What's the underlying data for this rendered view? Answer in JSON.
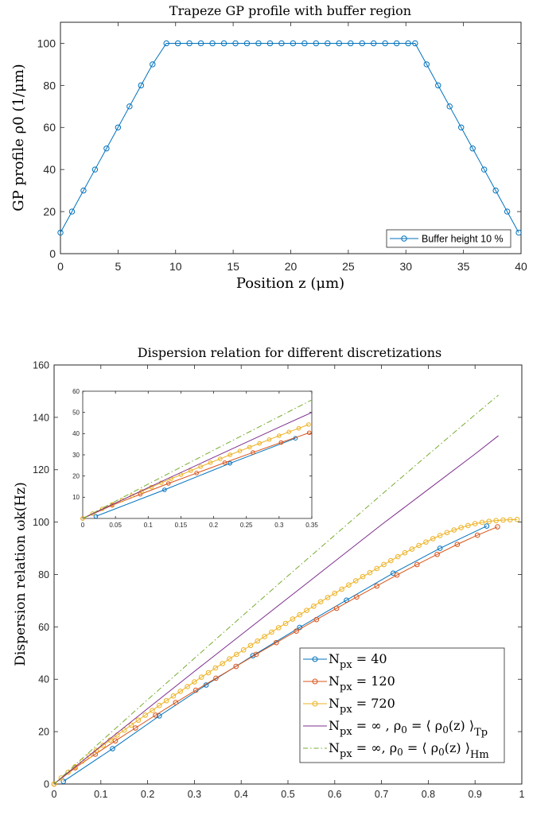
{
  "chart_data": [
    {
      "type": "line",
      "title": "Trapeze GP profile with buffer region",
      "xlabel": "Position z (μm)",
      "ylabel": "GP profile ρ0 (1/μm)",
      "xlim": [
        0,
        40
      ],
      "ylim": [
        0,
        110
      ],
      "xticks": [
        "0",
        "5",
        "10",
        "15",
        "20",
        "25",
        "30",
        "35",
        "40"
      ],
      "yticks": [
        "0",
        "20",
        "40",
        "60",
        "80",
        "100"
      ],
      "grid": false,
      "legend_position": "bottom-right",
      "series": [
        {
          "name": "Buffer height 10 %",
          "color": "#0072BD",
          "marker": "circle",
          "x": [
            0,
            1,
            2,
            3,
            4,
            5,
            6,
            7,
            8,
            9.2,
            10.2,
            11.2,
            12.2,
            13.2,
            14.2,
            15.2,
            16.2,
            17.2,
            18.2,
            19.2,
            20.2,
            21.2,
            22.2,
            23.2,
            24.2,
            25.2,
            26.2,
            27.2,
            28.2,
            29.2,
            30.2,
            30.8,
            31.8,
            32.8,
            33.8,
            34.8,
            35.8,
            36.8,
            37.8,
            38.8,
            39.8
          ],
          "y": [
            10,
            20,
            30,
            40,
            50,
            60,
            70,
            80,
            90,
            100,
            100,
            100,
            100,
            100,
            100,
            100,
            100,
            100,
            100,
            100,
            100,
            100,
            100,
            100,
            100,
            100,
            100,
            100,
            100,
            100,
            100,
            100,
            90,
            80,
            70,
            60,
            50,
            40,
            30,
            20,
            10
          ]
        }
      ]
    },
    {
      "type": "line",
      "title": "Dispersion relation for different discretizations",
      "xlabel": "",
      "ylabel": "Dispersion relation ωk(Hz)",
      "xlim": [
        0,
        1
      ],
      "ylim": [
        0,
        160
      ],
      "xticks": [
        "0",
        "0.1",
        "0.2",
        "0.3",
        "0.4",
        "0.5",
        "0.6",
        "0.7",
        "0.8",
        "0.9",
        "1"
      ],
      "yticks": [
        "0",
        "20",
        "40",
        "60",
        "80",
        "100",
        "120",
        "140",
        "160"
      ],
      "grid": false,
      "legend_position": "bottom-right",
      "legend_labels": {
        "s1": {
          "main": "N",
          "sub": "px",
          "tail": " = 40"
        },
        "s2": {
          "main": "N",
          "sub": "px",
          "tail": " = 120"
        },
        "s3": {
          "main": "N",
          "sub": "px",
          "tail": " = 720"
        },
        "s4": {
          "main": "N",
          "sub": "px",
          "mid": " = ∞ , ρ",
          "sub2": "0",
          "tail": " = ⟨ ρ",
          "sub3": "0",
          "tail2": "(z) ⟩",
          "sub4": "Tp"
        },
        "s5": {
          "main": "N",
          "sub": "px",
          "mid": " = ∞, ρ",
          "sub2": "0",
          "tail": " = ⟨ ρ",
          "sub3": "0",
          "tail2": "(z) ⟩",
          "sub4": "Hm"
        }
      },
      "series": [
        {
          "name": "Npx = 40",
          "color": "#0072BD",
          "marker": "circle",
          "x": [
            0.02,
            0.125,
            0.225,
            0.325,
            0.425,
            0.525,
            0.625,
            0.725,
            0.825,
            0.925
          ],
          "y": [
            1,
            13.5,
            26,
            37.8,
            49,
            59.8,
            70.2,
            80.5,
            90,
            98.5
          ]
        },
        {
          "name": "Npx = 120",
          "color": "#D95319",
          "marker": "circle",
          "x": [
            0.0,
            0.045,
            0.088,
            0.131,
            0.174,
            0.217,
            0.26,
            0.303,
            0.346,
            0.389,
            0.432,
            0.475,
            0.518,
            0.561,
            0.604,
            0.647,
            0.69,
            0.733,
            0.776,
            0.819,
            0.862,
            0.905,
            0.948
          ],
          "y": [
            0,
            6.2,
            11.4,
            16.5,
            21.4,
            26.3,
            31.1,
            35.8,
            40.4,
            44.9,
            49.5,
            54,
            58.4,
            62.8,
            67.1,
            71.4,
            75.6,
            79.8,
            83.8,
            87.7,
            91.5,
            95,
            98.2
          ]
        },
        {
          "name": "Npx = 720",
          "color": "#EDB120",
          "marker": "circle",
          "x": [
            0.0,
            0.015,
            0.03,
            0.045,
            0.06,
            0.075,
            0.09,
            0.105,
            0.12,
            0.135,
            0.15,
            0.165,
            0.18,
            0.195,
            0.21,
            0.225,
            0.24,
            0.255,
            0.27,
            0.285,
            0.3,
            0.315,
            0.33,
            0.345,
            0.36,
            0.375,
            0.39,
            0.405,
            0.42,
            0.435,
            0.45,
            0.465,
            0.48,
            0.495,
            0.51,
            0.525,
            0.54,
            0.555,
            0.57,
            0.585,
            0.6,
            0.615,
            0.63,
            0.645,
            0.66,
            0.675,
            0.69,
            0.705,
            0.72,
            0.735,
            0.75,
            0.765,
            0.78,
            0.795,
            0.81,
            0.825,
            0.84,
            0.855,
            0.87,
            0.885,
            0.9,
            0.915,
            0.93,
            0.945,
            0.96,
            0.975,
            0.99
          ],
          "y": [
            0,
            2.3,
            4.5,
            6.6,
            8.7,
            10.8,
            12.8,
            14.8,
            16.8,
            18.7,
            20.6,
            22.5,
            24.4,
            26.3,
            28.1,
            30,
            31.8,
            33.6,
            35.4,
            37.2,
            39,
            40.8,
            42.5,
            44.3,
            46,
            47.8,
            49.5,
            51.2,
            52.9,
            54.6,
            56.3,
            58,
            59.7,
            61.3,
            63,
            64.6,
            66.3,
            67.9,
            69.6,
            71.2,
            72.8,
            74.4,
            76,
            77.6,
            79.2,
            80.7,
            82.3,
            83.8,
            85.3,
            86.8,
            88.3,
            89.7,
            91.1,
            92.4,
            93.7,
            94.9,
            96,
            97,
            97.9,
            98.7,
            99.4,
            99.9,
            100.3,
            100.6,
            100.8,
            100.9,
            101
          ]
        },
        {
          "name": "Npx = ∞ , ρ0 = ⟨ ρ0(z) ⟩Tp",
          "color": "#7E2F8E",
          "marker": "none",
          "x": [
            0,
            0.1,
            0.2,
            0.3,
            0.4,
            0.5,
            0.6,
            0.7,
            0.8,
            0.9,
            0.95
          ],
          "y": [
            0,
            14.5,
            28.8,
            43,
            57,
            71,
            85,
            99,
            112.5,
            126,
            133
          ]
        },
        {
          "name": "Npx = ∞, ρ0 = ⟨ ρ0(z) ⟩Hm",
          "color": "#77AC30",
          "marker": "none",
          "dash": "dashdot",
          "x": [
            0,
            0.1,
            0.2,
            0.3,
            0.4,
            0.5,
            0.6,
            0.7,
            0.8,
            0.9,
            0.95
          ],
          "y": [
            0,
            16.2,
            32.2,
            48,
            63.8,
            79.5,
            95,
            110.5,
            125.8,
            141,
            148.5
          ]
        }
      ],
      "inset": {
        "xlim": [
          0,
          0.35
        ],
        "ylim": [
          0,
          60
        ],
        "xticks": [
          "0",
          "0.05",
          "0.1",
          "0.15",
          "0.2",
          "0.25",
          "0.3",
          "0.35"
        ],
        "yticks": [
          "10",
          "20",
          "30",
          "40",
          "50",
          "60"
        ]
      }
    }
  ]
}
